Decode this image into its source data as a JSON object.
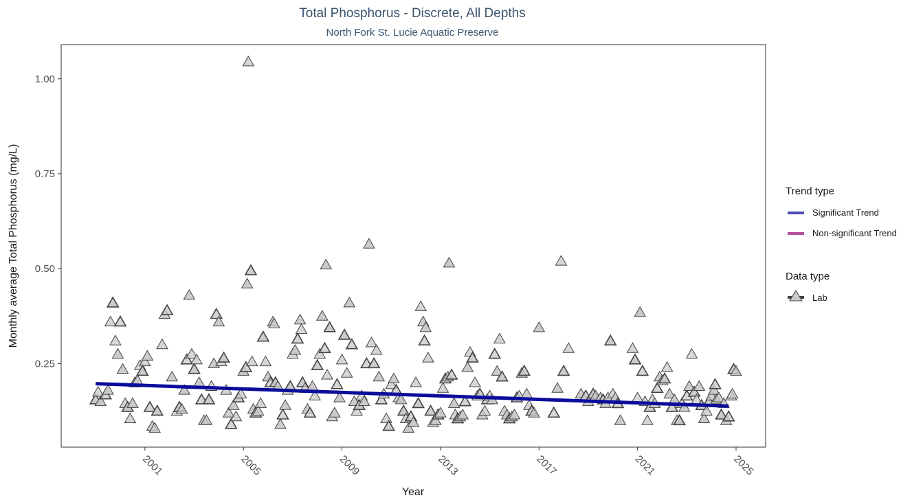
{
  "chart_data": {
    "type": "scatter",
    "title": "Total Phosphorus - Discrete, All Depths",
    "subtitle": "North Fork St. Lucie Aquatic Preserve",
    "xlabel": "Year",
    "ylabel": "Monthly average Total Phosphorus (mg/L)",
    "xlim": [
      1997.6,
      2026.2
    ],
    "ylim": [
      0.03,
      1.09
    ],
    "x_ticks": [
      2001,
      2005,
      2009,
      2013,
      2017,
      2021,
      2025
    ],
    "x_tick_labels": [
      "2001",
      "2005",
      "2009",
      "2013",
      "2017",
      "2021",
      "2025"
    ],
    "y_ticks": [
      0.25,
      0.5,
      0.75,
      1.0
    ],
    "y_tick_labels": [
      "0.25",
      "0.50",
      "0.75",
      "1.00"
    ],
    "grid": false,
    "legend_position": "right",
    "legend": {
      "trend_title": "Trend type",
      "trend_items": [
        {
          "label": "Significant Trend",
          "color": "#4b4bb5"
        },
        {
          "label": "Non-significant Trend",
          "color": "#b5509b"
        }
      ],
      "data_title": "Data type",
      "data_items": [
        {
          "label": "Lab",
          "marker": "triangle"
        }
      ]
    },
    "trend_line": {
      "name": "Significant Trend",
      "color": "#0b0b9c",
      "x": [
        1999.0,
        2024.7
      ],
      "y": [
        0.197,
        0.138
      ]
    },
    "series": [
      {
        "name": "Lab",
        "marker": "triangle",
        "fill": "#c8c8c8",
        "stroke": "#444444",
        "points": [
          [
            1999.0,
            0.155
          ],
          [
            1999.1,
            0.175
          ],
          [
            1999.2,
            0.15
          ],
          [
            1999.4,
            0.168
          ],
          [
            1999.5,
            0.18
          ],
          [
            1999.6,
            0.36
          ],
          [
            1999.7,
            0.41
          ],
          [
            1999.8,
            0.31
          ],
          [
            1999.9,
            0.275
          ],
          [
            2000.0,
            0.36
          ],
          [
            2000.1,
            0.235
          ],
          [
            2000.2,
            0.145
          ],
          [
            2000.3,
            0.135
          ],
          [
            2000.4,
            0.105
          ],
          [
            2000.5,
            0.145
          ],
          [
            2000.6,
            0.2
          ],
          [
            2000.7,
            0.205
          ],
          [
            2000.8,
            0.245
          ],
          [
            2000.9,
            0.23
          ],
          [
            2001.0,
            0.255
          ],
          [
            2001.1,
            0.27
          ],
          [
            2001.2,
            0.135
          ],
          [
            2001.3,
            0.085
          ],
          [
            2001.4,
            0.08
          ],
          [
            2001.5,
            0.125
          ],
          [
            2001.7,
            0.3
          ],
          [
            2001.8,
            0.38
          ],
          [
            2001.9,
            0.39
          ],
          [
            2002.1,
            0.215
          ],
          [
            2002.3,
            0.125
          ],
          [
            2002.4,
            0.135
          ],
          [
            2002.5,
            0.13
          ],
          [
            2002.6,
            0.18
          ],
          [
            2002.7,
            0.26
          ],
          [
            2002.8,
            0.43
          ],
          [
            2002.9,
            0.275
          ],
          [
            2003.0,
            0.235
          ],
          [
            2003.1,
            0.26
          ],
          [
            2003.2,
            0.2
          ],
          [
            2003.3,
            0.155
          ],
          [
            2003.4,
            0.1
          ],
          [
            2003.5,
            0.1
          ],
          [
            2003.6,
            0.155
          ],
          [
            2003.7,
            0.19
          ],
          [
            2003.8,
            0.25
          ],
          [
            2003.9,
            0.38
          ],
          [
            2004.0,
            0.36
          ],
          [
            2004.1,
            0.255
          ],
          [
            2004.2,
            0.265
          ],
          [
            2004.3,
            0.18
          ],
          [
            2004.4,
            0.12
          ],
          [
            2004.5,
            0.09
          ],
          [
            2004.6,
            0.14
          ],
          [
            2004.7,
            0.11
          ],
          [
            2004.8,
            0.16
          ],
          [
            2004.9,
            0.17
          ],
          [
            2005.0,
            0.23
          ],
          [
            2005.1,
            0.24
          ],
          [
            2005.15,
            0.46
          ],
          [
            2005.2,
            1.045
          ],
          [
            2005.3,
            0.495
          ],
          [
            2005.35,
            0.255
          ],
          [
            2005.4,
            0.13
          ],
          [
            2005.5,
            0.12
          ],
          [
            2005.6,
            0.125
          ],
          [
            2005.7,
            0.145
          ],
          [
            2005.8,
            0.32
          ],
          [
            2005.9,
            0.255
          ],
          [
            2006.0,
            0.215
          ],
          [
            2006.1,
            0.2
          ],
          [
            2006.2,
            0.36
          ],
          [
            2006.25,
            0.355
          ],
          [
            2006.3,
            0.2
          ],
          [
            2006.4,
            0.19
          ],
          [
            2006.5,
            0.09
          ],
          [
            2006.6,
            0.115
          ],
          [
            2006.7,
            0.14
          ],
          [
            2006.8,
            0.18
          ],
          [
            2006.9,
            0.19
          ],
          [
            2007.0,
            0.275
          ],
          [
            2007.1,
            0.285
          ],
          [
            2007.2,
            0.315
          ],
          [
            2007.3,
            0.365
          ],
          [
            2007.35,
            0.34
          ],
          [
            2007.4,
            0.2
          ],
          [
            2007.5,
            0.185
          ],
          [
            2007.6,
            0.13
          ],
          [
            2007.7,
            0.12
          ],
          [
            2007.8,
            0.19
          ],
          [
            2007.9,
            0.165
          ],
          [
            2008.0,
            0.245
          ],
          [
            2008.1,
            0.275
          ],
          [
            2008.2,
            0.375
          ],
          [
            2008.3,
            0.29
          ],
          [
            2008.35,
            0.51
          ],
          [
            2008.4,
            0.22
          ],
          [
            2008.5,
            0.345
          ],
          [
            2008.6,
            0.11
          ],
          [
            2008.7,
            0.12
          ],
          [
            2008.8,
            0.195
          ],
          [
            2008.9,
            0.16
          ],
          [
            2009.0,
            0.26
          ],
          [
            2009.1,
            0.325
          ],
          [
            2009.2,
            0.225
          ],
          [
            2009.3,
            0.41
          ],
          [
            2009.4,
            0.3
          ],
          [
            2009.5,
            0.15
          ],
          [
            2009.6,
            0.125
          ],
          [
            2009.7,
            0.14
          ],
          [
            2009.8,
            0.165
          ],
          [
            2009.9,
            0.15
          ],
          [
            2010.0,
            0.25
          ],
          [
            2010.1,
            0.565
          ],
          [
            2010.2,
            0.305
          ],
          [
            2010.3,
            0.25
          ],
          [
            2010.4,
            0.285
          ],
          [
            2010.5,
            0.215
          ],
          [
            2010.6,
            0.155
          ],
          [
            2010.7,
            0.17
          ],
          [
            2010.8,
            0.105
          ],
          [
            2010.9,
            0.085
          ],
          [
            2011.0,
            0.195
          ],
          [
            2011.1,
            0.21
          ],
          [
            2011.2,
            0.18
          ],
          [
            2011.3,
            0.16
          ],
          [
            2011.4,
            0.155
          ],
          [
            2011.5,
            0.125
          ],
          [
            2011.6,
            0.105
          ],
          [
            2011.7,
            0.08
          ],
          [
            2011.8,
            0.11
          ],
          [
            2011.9,
            0.095
          ],
          [
            2012.0,
            0.2
          ],
          [
            2012.1,
            0.145
          ],
          [
            2012.2,
            0.4
          ],
          [
            2012.3,
            0.36
          ],
          [
            2012.35,
            0.31
          ],
          [
            2012.4,
            0.345
          ],
          [
            2012.5,
            0.265
          ],
          [
            2012.6,
            0.125
          ],
          [
            2012.7,
            0.095
          ],
          [
            2012.8,
            0.1
          ],
          [
            2012.9,
            0.115
          ],
          [
            2013.0,
            0.12
          ],
          [
            2013.1,
            0.185
          ],
          [
            2013.2,
            0.21
          ],
          [
            2013.3,
            0.215
          ],
          [
            2013.35,
            0.515
          ],
          [
            2013.45,
            0.22
          ],
          [
            2013.55,
            0.145
          ],
          [
            2013.6,
            0.115
          ],
          [
            2013.7,
            0.105
          ],
          [
            2013.8,
            0.11
          ],
          [
            2013.9,
            0.115
          ],
          [
            2014.0,
            0.15
          ],
          [
            2014.1,
            0.24
          ],
          [
            2014.2,
            0.28
          ],
          [
            2014.3,
            0.265
          ],
          [
            2014.4,
            0.2
          ],
          [
            2014.5,
            0.165
          ],
          [
            2014.6,
            0.17
          ],
          [
            2014.7,
            0.115
          ],
          [
            2014.8,
            0.125
          ],
          [
            2014.9,
            0.155
          ],
          [
            2015.0,
            0.165
          ],
          [
            2015.1,
            0.155
          ],
          [
            2015.2,
            0.275
          ],
          [
            2015.3,
            0.23
          ],
          [
            2015.4,
            0.315
          ],
          [
            2015.5,
            0.215
          ],
          [
            2015.6,
            0.125
          ],
          [
            2015.7,
            0.115
          ],
          [
            2015.8,
            0.105
          ],
          [
            2015.9,
            0.11
          ],
          [
            2016.0,
            0.115
          ],
          [
            2016.1,
            0.16
          ],
          [
            2016.2,
            0.165
          ],
          [
            2016.3,
            0.225
          ],
          [
            2016.4,
            0.23
          ],
          [
            2016.5,
            0.17
          ],
          [
            2016.6,
            0.14
          ],
          [
            2016.7,
            0.125
          ],
          [
            2016.8,
            0.12
          ],
          [
            2017.0,
            0.345
          ],
          [
            2017.6,
            0.12
          ],
          [
            2017.75,
            0.185
          ],
          [
            2017.9,
            0.52
          ],
          [
            2018.0,
            0.23
          ],
          [
            2018.2,
            0.29
          ],
          [
            2018.7,
            0.17
          ],
          [
            2018.9,
            0.165
          ],
          [
            2019.0,
            0.15
          ],
          [
            2019.1,
            0.16
          ],
          [
            2019.2,
            0.17
          ],
          [
            2019.3,
            0.165
          ],
          [
            2019.5,
            0.16
          ],
          [
            2019.6,
            0.155
          ],
          [
            2019.7,
            0.145
          ],
          [
            2019.8,
            0.16
          ],
          [
            2019.9,
            0.31
          ],
          [
            2020.0,
            0.17
          ],
          [
            2020.1,
            0.16
          ],
          [
            2020.2,
            0.145
          ],
          [
            2020.3,
            0.1
          ],
          [
            2020.8,
            0.29
          ],
          [
            2020.9,
            0.26
          ],
          [
            2021.0,
            0.16
          ],
          [
            2021.1,
            0.385
          ],
          [
            2021.2,
            0.23
          ],
          [
            2021.3,
            0.15
          ],
          [
            2021.4,
            0.1
          ],
          [
            2021.5,
            0.135
          ],
          [
            2021.6,
            0.155
          ],
          [
            2021.7,
            0.145
          ],
          [
            2021.8,
            0.185
          ],
          [
            2021.9,
            0.215
          ],
          [
            2022.0,
            0.205
          ],
          [
            2022.1,
            0.21
          ],
          [
            2022.2,
            0.24
          ],
          [
            2022.3,
            0.17
          ],
          [
            2022.4,
            0.135
          ],
          [
            2022.5,
            0.155
          ],
          [
            2022.6,
            0.1
          ],
          [
            2022.7,
            0.1
          ],
          [
            2022.8,
            0.145
          ],
          [
            2022.9,
            0.135
          ],
          [
            2023.0,
            0.165
          ],
          [
            2023.1,
            0.19
          ],
          [
            2023.2,
            0.275
          ],
          [
            2023.3,
            0.175
          ],
          [
            2023.4,
            0.155
          ],
          [
            2023.5,
            0.19
          ],
          [
            2023.6,
            0.14
          ],
          [
            2023.7,
            0.105
          ],
          [
            2023.8,
            0.125
          ],
          [
            2023.9,
            0.15
          ],
          [
            2024.0,
            0.165
          ],
          [
            2024.1,
            0.18
          ],
          [
            2024.15,
            0.195
          ],
          [
            2024.2,
            0.155
          ],
          [
            2024.3,
            0.16
          ],
          [
            2024.4,
            0.115
          ],
          [
            2024.5,
            0.145
          ],
          [
            2024.6,
            0.1
          ],
          [
            2024.7,
            0.11
          ],
          [
            2024.8,
            0.165
          ],
          [
            2024.85,
            0.17
          ],
          [
            2024.9,
            0.235
          ],
          [
            2025.0,
            0.23
          ]
        ]
      }
    ]
  }
}
